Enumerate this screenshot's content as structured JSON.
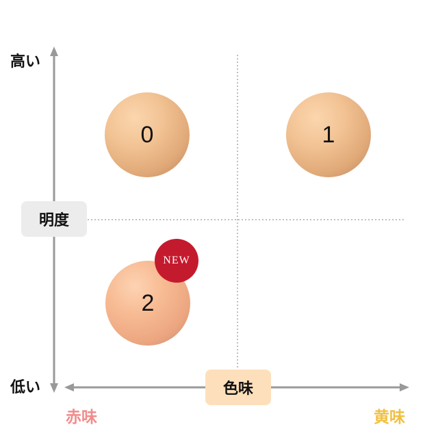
{
  "axes": {
    "vertical": {
      "label": "明度",
      "top": "高い",
      "bottom": "低い"
    },
    "horizontal": {
      "label": "色味",
      "left": "赤味",
      "right": "黄味"
    }
  },
  "shades": [
    {
      "label": "0",
      "color": "#f2c394"
    },
    {
      "label": "1",
      "color": "#f2c394"
    },
    {
      "label": "2",
      "color": "#f7bb93",
      "badge": "NEW"
    }
  ],
  "colors": {
    "red_label": "#f28b8b",
    "yellow_label": "#f2c040",
    "badge": "#c41a2e",
    "h_pill": "#fde0bb",
    "v_pill": "#ececec"
  }
}
